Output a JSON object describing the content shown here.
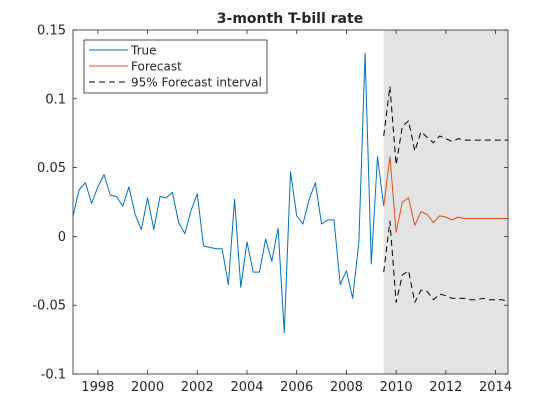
{
  "chart_data": {
    "type": "line",
    "title": "3-month T-bill rate",
    "xlabel": "",
    "ylabel": "",
    "xlim": [
      1997.0,
      2014.5
    ],
    "ylim": [
      -0.1,
      0.15
    ],
    "xticks": [
      1998,
      2000,
      2002,
      2004,
      2006,
      2008,
      2010,
      2012,
      2014
    ],
    "xtick_labels": [
      "1998",
      "2000",
      "2002",
      "2004",
      "2006",
      "2008",
      "2010",
      "2012",
      "2014"
    ],
    "yticks": [
      -0.1,
      -0.05,
      0,
      0.05,
      0.1,
      0.15
    ],
    "ytick_labels": [
      "-0.1",
      "-0.05",
      "0",
      "0.05",
      "0.1",
      "0.15"
    ],
    "grid": false,
    "legend_position": "top-left",
    "shaded_region": {
      "x": [
        2009.5,
        2014.5
      ],
      "color": "#e3e3e3"
    },
    "series": [
      {
        "name": "True",
        "color": "#0072bd",
        "style": "solid",
        "x": [
          1997.0,
          1997.25,
          1997.5,
          1997.75,
          1998.0,
          1998.25,
          1998.5,
          1998.75,
          1999.0,
          1999.25,
          1999.5,
          1999.75,
          2000.0,
          2000.25,
          2000.5,
          2000.75,
          2001.0,
          2001.25,
          2001.5,
          2001.75,
          2002.0,
          2002.25,
          2002.5,
          2002.75,
          2003.0,
          2003.25,
          2003.5,
          2003.75,
          2004.0,
          2004.25,
          2004.5,
          2004.75,
          2005.0,
          2005.25,
          2005.5,
          2005.75,
          2006.0,
          2006.25,
          2006.5,
          2006.75,
          2007.0,
          2007.25,
          2007.5,
          2007.75,
          2008.0,
          2008.25,
          2008.5,
          2008.75,
          2009.0,
          2009.25,
          2009.5
        ],
        "values": [
          0.015,
          0.034,
          0.039,
          0.024,
          0.036,
          0.045,
          0.03,
          0.029,
          0.022,
          0.036,
          0.016,
          0.005,
          0.028,
          0.005,
          0.029,
          0.028,
          0.032,
          0.01,
          0.002,
          0.019,
          0.031,
          -0.007,
          -0.008,
          -0.009,
          -0.009,
          -0.035,
          0.027,
          -0.037,
          -0.004,
          -0.026,
          -0.026,
          -0.002,
          -0.018,
          0.006,
          -0.07,
          0.047,
          0.015,
          0.009,
          0.027,
          0.039,
          0.009,
          0.012,
          0.012,
          -0.035,
          -0.025,
          -0.045,
          -0.004,
          0.133,
          -0.02,
          0.058,
          0.022
        ]
      },
      {
        "name": "Forecast",
        "color": "#d95319",
        "style": "solid",
        "x": [
          2009.5,
          2009.75,
          2010.0,
          2010.25,
          2010.5,
          2010.75,
          2011.0,
          2011.25,
          2011.5,
          2011.75,
          2012.0,
          2012.25,
          2012.5,
          2012.75,
          2013.0,
          2013.25,
          2013.5,
          2013.75,
          2014.0,
          2014.25,
          2014.5
        ],
        "values": [
          0.022,
          0.058,
          0.003,
          0.025,
          0.028,
          0.008,
          0.018,
          0.016,
          0.01,
          0.015,
          0.014,
          0.012,
          0.014,
          0.013,
          0.013,
          0.013,
          0.013,
          0.013,
          0.013,
          0.013,
          0.013
        ]
      },
      {
        "name": "95% Forecast interval",
        "color": "#000000",
        "style": "dashed",
        "x": [
          2009.5,
          2009.75,
          2010.0,
          2010.25,
          2010.5,
          2010.75,
          2011.0,
          2011.25,
          2011.5,
          2011.75,
          2012.0,
          2012.25,
          2012.5,
          2012.75,
          2013.0,
          2013.25,
          2013.5,
          2013.75,
          2014.0,
          2014.25,
          2014.5
        ],
        "values": [
          0.073,
          0.109,
          0.052,
          0.08,
          0.084,
          0.062,
          0.076,
          0.072,
          0.068,
          0.073,
          0.071,
          0.069,
          0.071,
          0.07,
          0.07,
          0.07,
          0.07,
          0.07,
          0.07,
          0.07,
          0.07
        ]
      },
      {
        "name": "",
        "color": "#000000",
        "style": "dashed",
        "x": [
          2009.5,
          2009.75,
          2010.0,
          2010.25,
          2010.5,
          2010.75,
          2011.0,
          2011.25,
          2011.5,
          2011.75,
          2012.0,
          2012.25,
          2012.5,
          2012.75,
          2013.0,
          2013.25,
          2013.5,
          2013.75,
          2014.0,
          2014.25,
          2014.5
        ],
        "values": [
          -0.026,
          0.011,
          -0.048,
          -0.028,
          -0.025,
          -0.048,
          -0.039,
          -0.04,
          -0.046,
          -0.042,
          -0.043,
          -0.045,
          -0.045,
          -0.045,
          -0.046,
          -0.046,
          -0.045,
          -0.046,
          -0.046,
          -0.046,
          -0.047
        ]
      }
    ],
    "legend": [
      "True",
      "Forecast",
      "95% Forecast interval"
    ]
  }
}
